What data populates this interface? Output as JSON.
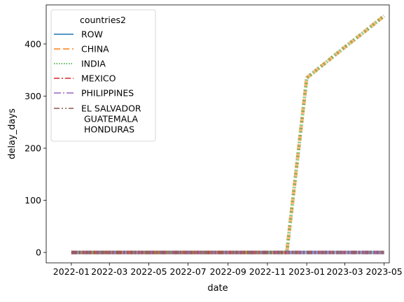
{
  "chart_data": {
    "type": "line",
    "title": "",
    "xlabel": "date",
    "ylabel": "delay_days",
    "x_ticks": [
      "2022-01",
      "2022-03",
      "2022-05",
      "2022-07",
      "2022-09",
      "2022-11",
      "2023-01",
      "2023-03",
      "2023-05"
    ],
    "x_range": [
      "2021-11-23",
      "2023-05-09"
    ],
    "y_ticks": [
      0,
      100,
      200,
      300,
      400
    ],
    "ylim": [
      -20,
      475
    ],
    "grid": false,
    "legend": {
      "title": "countries2",
      "placement": "top-left"
    },
    "series": [
      {
        "name": "ROW",
        "color": "#1f77b4",
        "dash": "solid",
        "points": [
          [
            "2022-01-01",
            0
          ],
          [
            "2022-12-01",
            0
          ],
          [
            "2023-01-01",
            0
          ],
          [
            "2023-05-01",
            0
          ]
        ]
      },
      {
        "name": "CHINA",
        "color": "#ff7f0e",
        "dash": "dashed",
        "points": [
          [
            "2022-01-01",
            0
          ],
          [
            "2022-12-01",
            0
          ],
          [
            "2023-01-01",
            335
          ],
          [
            "2023-02-01",
            366
          ],
          [
            "2023-03-01",
            394
          ],
          [
            "2023-04-01",
            424
          ],
          [
            "2023-05-01",
            454
          ]
        ]
      },
      {
        "name": "INDIA",
        "color": "#2ca02c",
        "dash": "dotted",
        "points": [
          [
            "2022-01-01",
            0
          ],
          [
            "2022-12-01",
            0
          ],
          [
            "2023-01-01",
            335
          ],
          [
            "2023-02-01",
            366
          ],
          [
            "2023-03-01",
            394
          ],
          [
            "2023-04-01",
            424
          ],
          [
            "2023-05-01",
            454
          ]
        ]
      },
      {
        "name": "MEXICO",
        "color": "#d62728",
        "dash": "dashdot",
        "points": [
          [
            "2022-01-01",
            0
          ],
          [
            "2022-12-01",
            0
          ],
          [
            "2023-01-01",
            0
          ],
          [
            "2023-05-01",
            0
          ]
        ]
      },
      {
        "name": "PHILIPPINES",
        "color": "#9467bd",
        "dash": "dashdot2",
        "points": [
          [
            "2022-01-01",
            0
          ],
          [
            "2022-12-01",
            0
          ],
          [
            "2023-01-01",
            0
          ],
          [
            "2023-05-01",
            0
          ]
        ]
      },
      {
        "name": "EL SALVADOR\n GUATEMALA\n HONDURAS",
        "color": "#8c564b",
        "dash": "dashdotdot",
        "points": [
          [
            "2022-01-01",
            0
          ],
          [
            "2022-12-01",
            0
          ],
          [
            "2023-01-01",
            0
          ],
          [
            "2023-05-01",
            0
          ]
        ]
      }
    ]
  }
}
